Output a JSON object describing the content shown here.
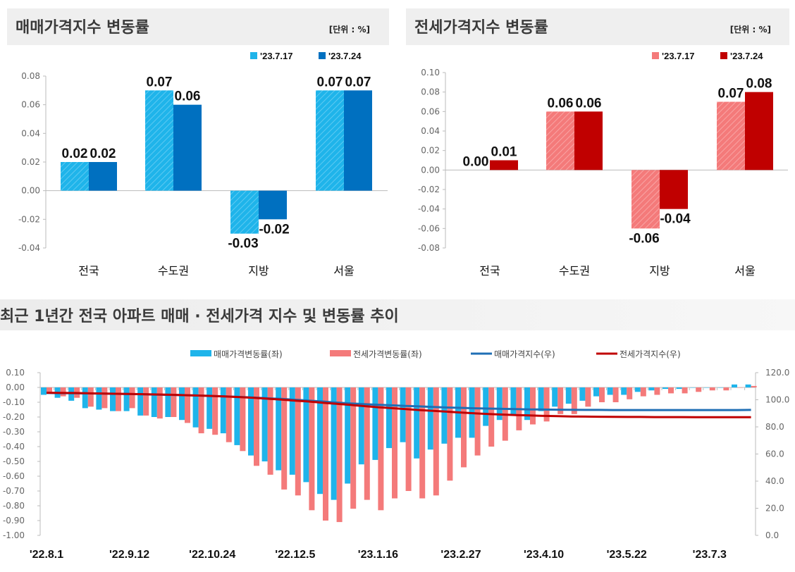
{
  "chart_data": [
    {
      "type": "bar",
      "title": "매매가격지수 변동률",
      "unit": "[단위 : %]",
      "categories": [
        "전국",
        "수도권",
        "지방",
        "서울"
      ],
      "series": [
        {
          "name": "'23.7.17",
          "values": [
            0.02,
            0.07,
            -0.03,
            0.07
          ],
          "color": "#1fb4ea",
          "hatched": true
        },
        {
          "name": "'23.7.24",
          "values": [
            0.02,
            0.06,
            -0.02,
            0.07
          ],
          "color": "#0070c0",
          "hatched": false
        }
      ],
      "data_labels": [
        [
          "0.02",
          "0.07",
          "-0.03",
          "0.07"
        ],
        [
          "0.02",
          "0.06",
          "-0.02",
          "0.07"
        ]
      ],
      "ylim": [
        -0.04,
        0.08
      ],
      "yticks": [
        "0.08",
        "0.06",
        "0.04",
        "0.02",
        "0.00",
        "-0.02",
        "-0.04"
      ],
      "legend": "top-right",
      "grid": false
    },
    {
      "type": "bar",
      "title": "전세가격지수 변동률",
      "unit": "[단위 : %]",
      "categories": [
        "전국",
        "수도권",
        "지방",
        "서울"
      ],
      "series": [
        {
          "name": "'23.7.17",
          "values": [
            0.0,
            0.06,
            -0.06,
            0.07
          ],
          "color": "#f47a7a",
          "hatched": true
        },
        {
          "name": "'23.7.24",
          "values": [
            0.01,
            0.06,
            -0.04,
            0.08
          ],
          "color": "#c00000",
          "hatched": false
        }
      ],
      "data_labels": [
        [
          "0.00",
          "0.06",
          "-0.06",
          "0.07"
        ],
        [
          "0.01",
          "0.06",
          "-0.04",
          "0.08"
        ]
      ],
      "ylim": [
        -0.08,
        0.1
      ],
      "yticks": [
        "0.10",
        "0.08",
        "0.06",
        "0.04",
        "0.02",
        "0.00",
        "-0.02",
        "-0.04",
        "-0.06",
        "-0.08"
      ],
      "legend": "top-right",
      "grid": false
    },
    {
      "type": "bar+line",
      "title": "최근 1년간 전국 아파트 매매 · 전세가격 지수 및 변동률 추이",
      "x_tick_labels": [
        "'22.8.1",
        "'22.9.12",
        "'22.10.24",
        "'22.12.5",
        "'23.1.16",
        "'23.2.27",
        "'23.4.10",
        "'23.5.22",
        "'23.7.3"
      ],
      "x_tick_every_weeks": 6,
      "weeks": 52,
      "left_ylim": [
        -1.0,
        0.1
      ],
      "left_yticks": [
        "0.10",
        "0.00",
        "-0.10",
        "-0.20",
        "-0.30",
        "-0.40",
        "-0.50",
        "-0.60",
        "-0.70",
        "-0.80",
        "-0.90",
        "-1.00"
      ],
      "right_ylim": [
        0,
        120
      ],
      "right_yticks": [
        "120.0",
        "100.0",
        "80.0",
        "60.0",
        "40.0",
        "20.0",
        "0.0"
      ],
      "legend": "top",
      "series": [
        {
          "name": "매매가격변동률(좌)",
          "kind": "bar",
          "axis": "left",
          "color": "#1fb4ea",
          "values": [
            -0.05,
            -0.07,
            -0.09,
            -0.14,
            -0.15,
            -0.16,
            -0.16,
            -0.19,
            -0.2,
            -0.2,
            -0.22,
            -0.27,
            -0.28,
            -0.31,
            -0.39,
            -0.46,
            -0.5,
            -0.56,
            -0.59,
            -0.64,
            -0.72,
            -0.76,
            -0.65,
            -0.52,
            -0.49,
            -0.41,
            -0.37,
            -0.48,
            -0.42,
            -0.38,
            -0.34,
            -0.34,
            -0.26,
            -0.22,
            -0.19,
            -0.22,
            -0.16,
            -0.13,
            -0.11,
            -0.09,
            -0.06,
            -0.05,
            -0.05,
            -0.03,
            -0.02,
            -0.01,
            -0.01,
            0.0,
            0.0,
            0.0,
            0.02,
            0.02
          ]
        },
        {
          "name": "전세가격변동률(좌)",
          "kind": "bar",
          "axis": "left",
          "color": "#f47a7a",
          "values": [
            -0.04,
            -0.06,
            -0.07,
            -0.13,
            -0.14,
            -0.16,
            -0.14,
            -0.19,
            -0.21,
            -0.2,
            -0.24,
            -0.31,
            -0.32,
            -0.37,
            -0.43,
            -0.53,
            -0.59,
            -0.69,
            -0.73,
            -0.83,
            -0.9,
            -0.91,
            -0.82,
            -0.76,
            -0.83,
            -0.75,
            -0.7,
            -0.75,
            -0.73,
            -0.63,
            -0.54,
            -0.46,
            -0.4,
            -0.36,
            -0.29,
            -0.25,
            -0.23,
            -0.18,
            -0.18,
            -0.13,
            -0.1,
            -0.1,
            -0.08,
            -0.06,
            -0.05,
            -0.04,
            -0.04,
            -0.03,
            -0.02,
            -0.02,
            0.0,
            0.01
          ]
        },
        {
          "name": "매매가격지수(우)",
          "kind": "line",
          "axis": "right",
          "color": "#1f6fb5",
          "values": [
            105.0,
            104.9,
            104.8,
            104.7,
            104.5,
            104.4,
            104.2,
            104.0,
            103.8,
            103.6,
            103.4,
            103.1,
            102.8,
            102.5,
            102.1,
            101.6,
            101.1,
            100.6,
            100.0,
            99.4,
            98.7,
            97.9,
            97.3,
            96.8,
            96.3,
            95.9,
            95.5,
            95.1,
            94.7,
            94.3,
            94.0,
            93.7,
            93.5,
            93.3,
            93.1,
            92.9,
            92.8,
            92.7,
            92.6,
            92.5,
            92.5,
            92.4,
            92.4,
            92.4,
            92.4,
            92.4,
            92.4,
            92.4,
            92.4,
            92.4,
            92.4,
            92.5
          ]
        },
        {
          "name": "전세가격지수(우)",
          "kind": "line",
          "axis": "right",
          "color": "#c00000",
          "values": [
            105.2,
            105.1,
            105.0,
            104.8,
            104.6,
            104.4,
            104.3,
            104.1,
            103.9,
            103.7,
            103.4,
            103.1,
            102.8,
            102.4,
            101.9,
            101.4,
            100.8,
            100.1,
            99.4,
            98.7,
            97.8,
            97.0,
            96.2,
            95.3,
            94.5,
            93.8,
            93.1,
            92.4,
            91.8,
            91.2,
            90.6,
            90.0,
            89.5,
            89.1,
            88.7,
            88.4,
            88.1,
            87.9,
            87.7,
            87.6,
            87.5,
            87.4,
            87.3,
            87.3,
            87.2,
            87.2,
            87.2,
            87.1,
            87.1,
            87.1,
            87.1,
            87.1
          ]
        }
      ]
    }
  ]
}
